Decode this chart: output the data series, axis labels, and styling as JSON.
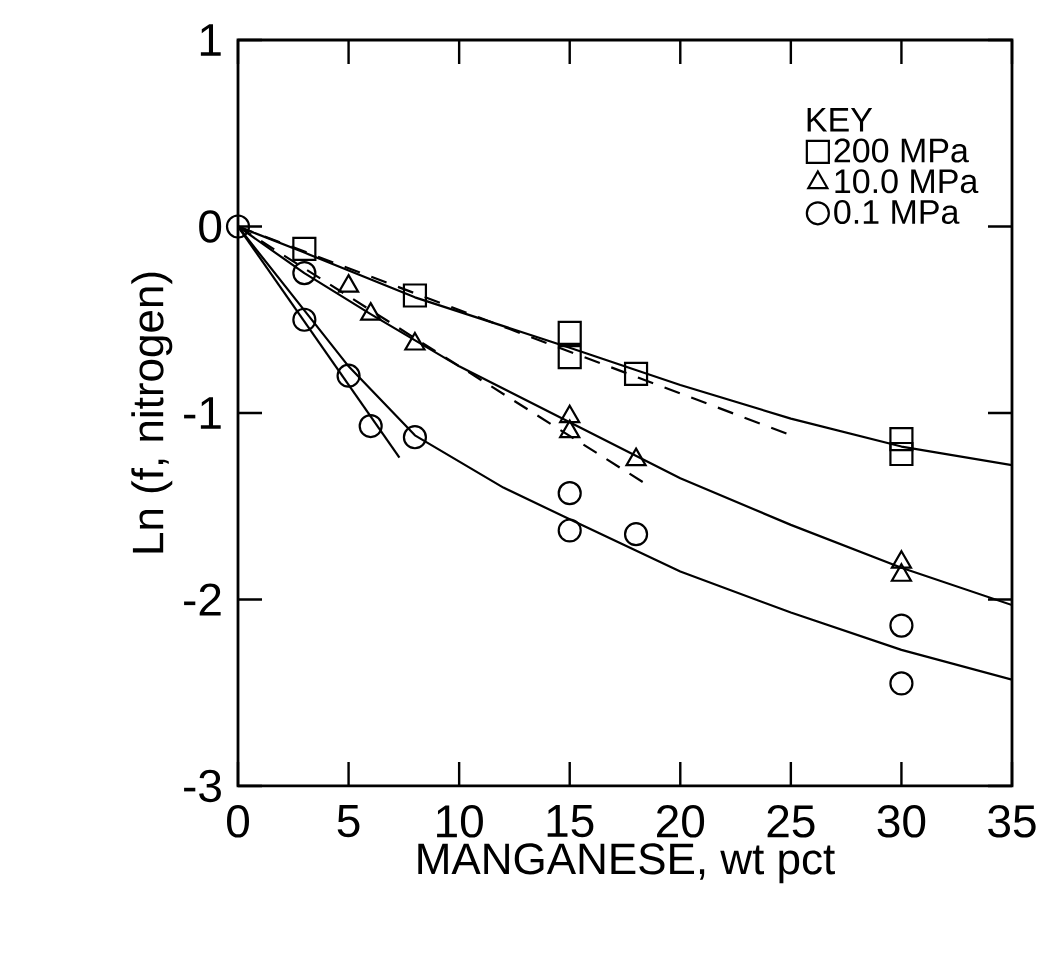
{
  "chart_data": {
    "type": "scatter",
    "xlabel": "MANGANESE, wt pct",
    "ylabel": "Ln (f, nitrogen)",
    "legend_title": "KEY",
    "legend": "top right",
    "xlim": [
      0,
      35
    ],
    "ylim": [
      -3,
      1
    ],
    "xticks": [
      0,
      5,
      10,
      15,
      20,
      25,
      30,
      35
    ],
    "yticks": [
      -3,
      -2,
      -1,
      0,
      1
    ],
    "grid": false,
    "series": [
      {
        "name": "200 MPa",
        "marker": "square",
        "color": "#000000",
        "x": [
          3,
          8,
          15,
          15,
          18,
          30,
          30
        ],
        "values": [
          -0.12,
          -0.37,
          -0.57,
          -0.7,
          -0.79,
          -1.14,
          -1.22
        ]
      },
      {
        "name": "10.0 MPa",
        "marker": "triangle",
        "color": "#000000",
        "x": [
          5,
          6,
          8,
          15,
          15,
          18,
          30,
          30
        ],
        "values": [
          -0.32,
          -0.47,
          -0.63,
          -1.02,
          -1.1,
          -1.25,
          -1.8,
          -1.87
        ]
      },
      {
        "name": "0.1 MPa",
        "marker": "circle",
        "color": "#000000",
        "x": [
          0,
          3,
          3,
          5,
          6,
          8,
          15,
          15,
          18,
          30,
          30
        ],
        "values": [
          0,
          -0.25,
          -0.5,
          -0.8,
          -1.07,
          -1.13,
          -1.43,
          -1.63,
          -1.65,
          -2.14,
          -2.45
        ]
      },
      {
        "type": "line",
        "line_style": "solid",
        "color": "#000000",
        "x": [
          0,
          3,
          8,
          15,
          20,
          25,
          30,
          35
        ],
        "values": [
          0,
          -0.14,
          -0.38,
          -0.65,
          -0.85,
          -1.03,
          -1.18,
          -1.28
        ]
      },
      {
        "type": "line",
        "line_style": "solid",
        "color": "#000000",
        "x": [
          0,
          3,
          6,
          10,
          15,
          20,
          25,
          30,
          35
        ],
        "values": [
          0,
          -0.25,
          -0.47,
          -0.75,
          -1.05,
          -1.35,
          -1.6,
          -1.83,
          -2.03
        ]
      },
      {
        "type": "line",
        "line_style": "solid",
        "color": "#000000",
        "x": [
          0,
          3,
          5,
          8,
          12,
          15,
          20,
          25,
          30,
          35
        ],
        "values": [
          0,
          -0.45,
          -0.75,
          -1.12,
          -1.4,
          -1.57,
          -1.85,
          -2.07,
          -2.27,
          -2.43
        ]
      },
      {
        "type": "line",
        "line_style": "solid",
        "color": "#000000",
        "x": [
          0,
          7.3
        ],
        "values": [
          0,
          -1.24
        ]
      },
      {
        "type": "line",
        "line_style": "dashed",
        "color": "#000000",
        "x": [
          0,
          24.8
        ],
        "values": [
          0,
          -1.11
        ]
      },
      {
        "type": "line",
        "line_style": "dashed",
        "color": "#000000",
        "x": [
          0,
          18.3
        ],
        "values": [
          0,
          -1.37
        ]
      }
    ]
  }
}
